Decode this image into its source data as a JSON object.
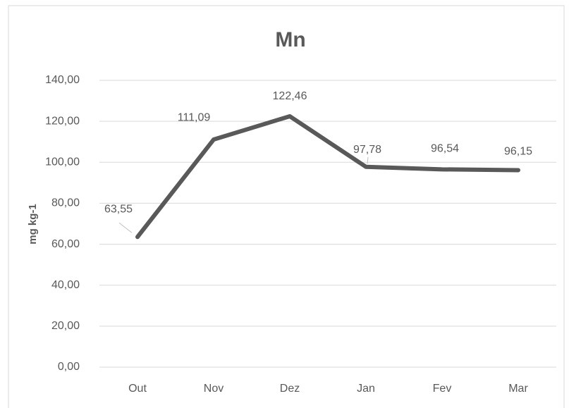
{
  "chart_data": {
    "type": "line",
    "title": "Mn",
    "y_label": "mg kg-1",
    "categories": [
      "Out",
      "Nov",
      "Dez",
      "Jan",
      "Fev",
      "Mar"
    ],
    "series": [
      {
        "name": "Mn",
        "color": "#595959",
        "values": [
          63.55,
          111.09,
          122.46,
          97.78,
          96.54,
          96.15
        ],
        "value_labels": [
          "63,55",
          "111,09",
          "122,46",
          "97,78",
          "96,54",
          "96,15"
        ]
      }
    ],
    "ylim": [
      0,
      140
    ],
    "yticks": [
      {
        "value": 0,
        "label": "0,00"
      },
      {
        "value": 20,
        "label": "20,00"
      },
      {
        "value": 40,
        "label": "40,00"
      },
      {
        "value": 60,
        "label": "60,00"
      },
      {
        "value": 80,
        "label": "80,00"
      },
      {
        "value": 100,
        "label": "100,00"
      },
      {
        "value": 120,
        "label": "120,00"
      },
      {
        "value": 140,
        "label": "140,00"
      }
    ],
    "grid": true
  }
}
